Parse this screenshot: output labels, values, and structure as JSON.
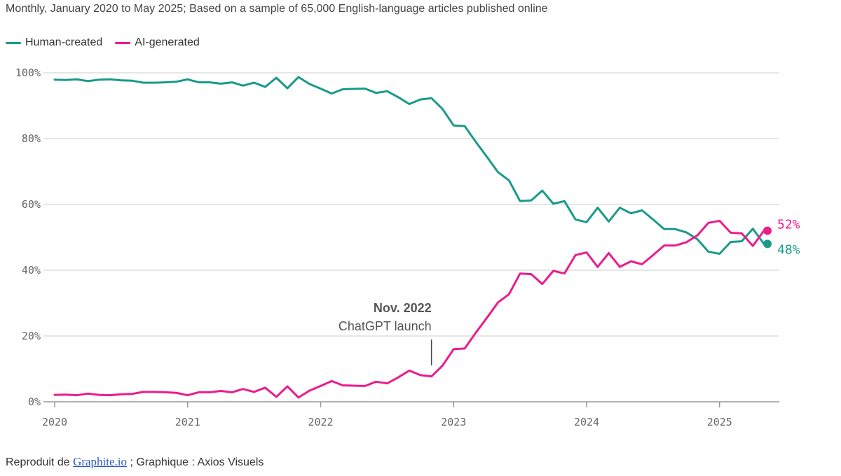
{
  "subtitle": "Monthly, January 2020 to May 2025; Based on a sample of 65,000 English-language articles published online",
  "colors": {
    "human": "#1a9a8a",
    "ai": "#ec1c8c"
  },
  "legend": [
    {
      "label": "Human-created",
      "color": "#1a9a8a"
    },
    {
      "label": "AI-generated",
      "color": "#ec1c8c"
    }
  ],
  "annotation": {
    "title": "Nov. 2022",
    "subtitle": "ChatGPT launch",
    "date": "2022-11"
  },
  "source": {
    "prefix": "Reproduit de ",
    "link": "Graphite.io",
    "suffix": " ; Graphique : Axios Visuels"
  },
  "chart_data": {
    "type": "line",
    "x_start": "2020-01",
    "x_end": "2025-05",
    "ylim": [
      0,
      100
    ],
    "yticks": [
      "100%",
      "80%",
      "60%",
      "40%",
      "20%",
      "0%"
    ],
    "ytick_values": [
      100,
      80,
      60,
      40,
      20,
      0
    ],
    "xticks": [
      "2020",
      "2021",
      "2022",
      "2023",
      "2024",
      "2025"
    ],
    "grid": true,
    "legend_position": "top-left",
    "series": [
      {
        "name": "Human-created",
        "color": "#1a9a8a",
        "end_label": "48%",
        "values": [
          97.9,
          97.8,
          98.0,
          97.5,
          97.9,
          98.0,
          97.7,
          97.6,
          97.0,
          97.0,
          97.1,
          97.3,
          98.0,
          97.1,
          97.1,
          96.7,
          97.1,
          96.1,
          97.0,
          95.7,
          98.5,
          95.3,
          98.7,
          96.6,
          95.2,
          93.7,
          95.0,
          95.1,
          95.2,
          93.9,
          94.4,
          92.6,
          90.5,
          91.9,
          92.3,
          89.0,
          84.0,
          83.8,
          79.0,
          74.5,
          69.8,
          67.3,
          61.0,
          61.2,
          64.2,
          60.2,
          61.0,
          55.4,
          54.6,
          59.0,
          54.8,
          59.0,
          57.3,
          58.2,
          55.4,
          52.5,
          52.5,
          51.5,
          49.4,
          45.6,
          45.0,
          48.6,
          48.8,
          52.6,
          48.0
        ]
      },
      {
        "name": "AI-generated",
        "color": "#ec1c8c",
        "end_label": "52%",
        "values": [
          2.1,
          2.2,
          2.0,
          2.5,
          2.1,
          2.0,
          2.3,
          2.4,
          3.0,
          3.0,
          2.9,
          2.7,
          2.0,
          2.9,
          2.9,
          3.3,
          2.9,
          3.9,
          3.0,
          4.3,
          1.5,
          4.7,
          1.3,
          3.4,
          4.8,
          6.3,
          5.0,
          4.9,
          4.8,
          6.1,
          5.6,
          7.4,
          9.5,
          8.1,
          7.7,
          11.0,
          16.0,
          16.2,
          21.0,
          25.5,
          30.2,
          32.7,
          39.0,
          38.8,
          35.8,
          39.8,
          39.0,
          44.6,
          45.4,
          41.0,
          45.2,
          41.0,
          42.7,
          41.8,
          44.6,
          47.5,
          47.5,
          48.5,
          50.6,
          54.4,
          55.0,
          51.4,
          51.2,
          47.4,
          52.0
        ]
      }
    ]
  }
}
